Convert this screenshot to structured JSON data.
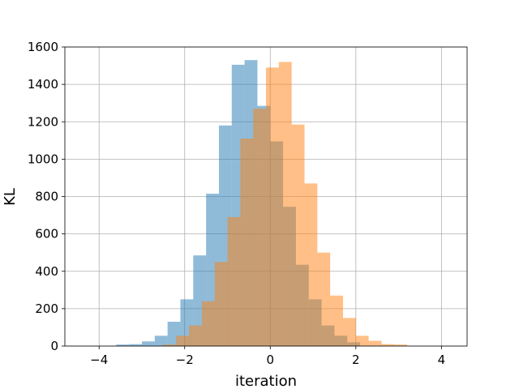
{
  "chart_data": {
    "type": "bar",
    "title": "",
    "xlabel": "iteration",
    "ylabel": "KL",
    "xlim": [
      -4.8,
      4.6
    ],
    "ylim": [
      0,
      1600
    ],
    "xticks": [
      -4,
      -2,
      0,
      2,
      4
    ],
    "yticks": [
      0,
      200,
      400,
      600,
      800,
      1000,
      1200,
      1400,
      1600
    ],
    "grid": true,
    "series": [
      {
        "color": "#1f77b4",
        "opacity": 0.5,
        "bins": [
          {
            "x0": -3.6,
            "x1": -3.3,
            "value": 8
          },
          {
            "x0": -3.3,
            "x1": -3.0,
            "value": 10
          },
          {
            "x0": -3.0,
            "x1": -2.7,
            "value": 25
          },
          {
            "x0": -2.7,
            "x1": -2.4,
            "value": 55
          },
          {
            "x0": -2.4,
            "x1": -2.1,
            "value": 130
          },
          {
            "x0": -2.1,
            "x1": -1.8,
            "value": 250
          },
          {
            "x0": -1.8,
            "x1": -1.5,
            "value": 485
          },
          {
            "x0": -1.5,
            "x1": -1.2,
            "value": 815
          },
          {
            "x0": -1.2,
            "x1": -0.9,
            "value": 1180
          },
          {
            "x0": -0.9,
            "x1": -0.6,
            "value": 1505
          },
          {
            "x0": -0.6,
            "x1": -0.3,
            "value": 1530
          },
          {
            "x0": -0.3,
            "x1": 0.0,
            "value": 1285
          },
          {
            "x0": 0.0,
            "x1": 0.3,
            "value": 1095
          },
          {
            "x0": 0.3,
            "x1": 0.6,
            "value": 745
          },
          {
            "x0": 0.6,
            "x1": 0.9,
            "value": 435
          },
          {
            "x0": 0.9,
            "x1": 1.2,
            "value": 250
          },
          {
            "x0": 1.2,
            "x1": 1.5,
            "value": 110
          },
          {
            "x0": 1.5,
            "x1": 1.8,
            "value": 55
          },
          {
            "x0": 1.8,
            "x1": 2.1,
            "value": 20
          }
        ]
      },
      {
        "color": "#ff7f0e",
        "opacity": 0.5,
        "bins": [
          {
            "x0": -2.5,
            "x1": -2.2,
            "value": 8
          },
          {
            "x0": -2.2,
            "x1": -1.9,
            "value": 55
          },
          {
            "x0": -1.9,
            "x1": -1.6,
            "value": 110
          },
          {
            "x0": -1.6,
            "x1": -1.3,
            "value": 240
          },
          {
            "x0": -1.3,
            "x1": -1.0,
            "value": 450
          },
          {
            "x0": -1.0,
            "x1": -0.7,
            "value": 690
          },
          {
            "x0": -0.7,
            "x1": -0.4,
            "value": 1110
          },
          {
            "x0": -0.4,
            "x1": -0.1,
            "value": 1270
          },
          {
            "x0": -0.1,
            "x1": 0.2,
            "value": 1490
          },
          {
            "x0": 0.2,
            "x1": 0.5,
            "value": 1520
          },
          {
            "x0": 0.5,
            "x1": 0.8,
            "value": 1185
          },
          {
            "x0": 0.8,
            "x1": 1.1,
            "value": 870
          },
          {
            "x0": 1.1,
            "x1": 1.4,
            "value": 500
          },
          {
            "x0": 1.4,
            "x1": 1.7,
            "value": 270
          },
          {
            "x0": 1.7,
            "x1": 2.0,
            "value": 150
          },
          {
            "x0": 2.0,
            "x1": 2.3,
            "value": 55
          },
          {
            "x0": 2.3,
            "x1": 2.6,
            "value": 28
          },
          {
            "x0": 2.6,
            "x1": 2.9,
            "value": 10
          },
          {
            "x0": 2.9,
            "x1": 3.2,
            "value": 8
          }
        ]
      }
    ]
  }
}
